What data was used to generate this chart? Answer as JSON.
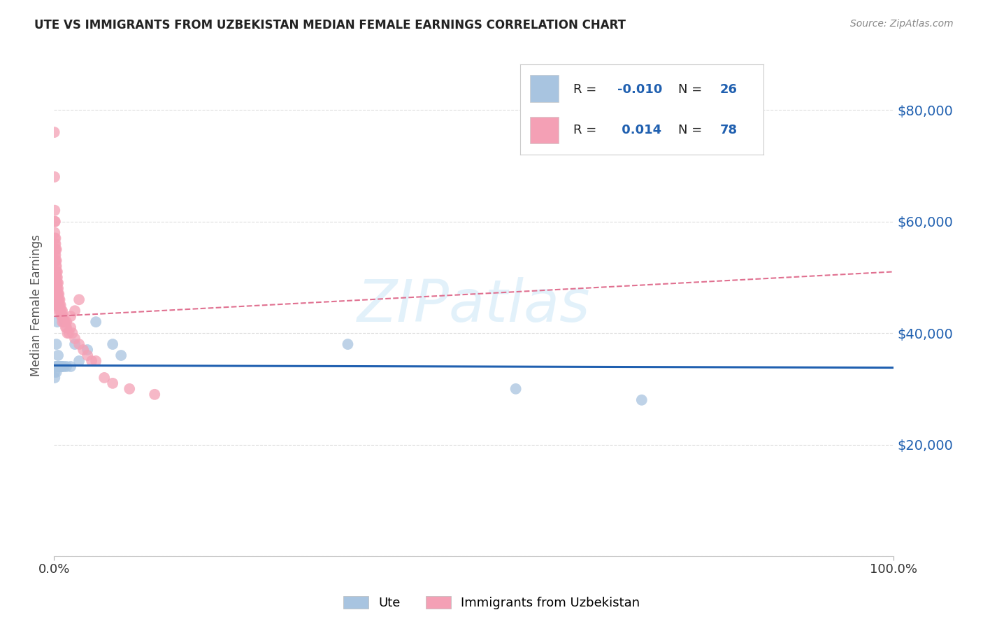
{
  "title": "UTE VS IMMIGRANTS FROM UZBEKISTAN MEDIAN FEMALE EARNINGS CORRELATION CHART",
  "source": "Source: ZipAtlas.com",
  "ylabel": "Median Female Earnings",
  "xlim": [
    0.0,
    1.0
  ],
  "ylim": [
    0,
    90000
  ],
  "yticks": [
    0,
    20000,
    40000,
    60000,
    80000
  ],
  "ytick_labels": [
    "",
    "$20,000",
    "$40,000",
    "$60,000",
    "$80,000"
  ],
  "xtick_labels": [
    "0.0%",
    "100.0%"
  ],
  "watermark": "ZIPatlas",
  "ute_color": "#a8c4e0",
  "uzbek_color": "#f4a0b5",
  "ute_line_color": "#2060b0",
  "uzbek_line_color": "#e07090",
  "background_color": "#ffffff",
  "grid_color": "#cccccc",
  "ute_scatter_x": [
    0.001,
    0.001,
    0.002,
    0.002,
    0.003,
    0.003,
    0.003,
    0.004,
    0.004,
    0.005,
    0.005,
    0.006,
    0.007,
    0.008,
    0.009,
    0.01,
    0.012,
    0.015,
    0.02,
    0.025,
    0.03,
    0.04,
    0.05,
    0.07,
    0.08,
    0.35,
    0.55,
    0.7
  ],
  "ute_scatter_y": [
    33000,
    32000,
    45000,
    34000,
    38000,
    34000,
    33000,
    42000,
    34000,
    36000,
    34000,
    34000,
    34000,
    34000,
    34000,
    34000,
    34000,
    34000,
    34000,
    38000,
    35000,
    37000,
    42000,
    38000,
    36000,
    38000,
    30000,
    28000
  ],
  "uzbek_scatter_x": [
    0.0005,
    0.0008,
    0.001,
    0.001,
    0.001,
    0.001,
    0.001,
    0.001,
    0.001,
    0.001,
    0.0015,
    0.002,
    0.002,
    0.002,
    0.002,
    0.002,
    0.002,
    0.002,
    0.002,
    0.002,
    0.002,
    0.003,
    0.003,
    0.003,
    0.003,
    0.003,
    0.003,
    0.003,
    0.003,
    0.003,
    0.003,
    0.004,
    0.004,
    0.004,
    0.004,
    0.004,
    0.005,
    0.005,
    0.005,
    0.005,
    0.005,
    0.005,
    0.006,
    0.006,
    0.006,
    0.007,
    0.007,
    0.007,
    0.008,
    0.008,
    0.009,
    0.009,
    0.01,
    0.01,
    0.01,
    0.011,
    0.012,
    0.013,
    0.014,
    0.015,
    0.016,
    0.018,
    0.02,
    0.022,
    0.025,
    0.03,
    0.035,
    0.04,
    0.045,
    0.05,
    0.06,
    0.07,
    0.09,
    0.12,
    0.015,
    0.02,
    0.025,
    0.03
  ],
  "uzbek_scatter_y": [
    76000,
    68000,
    62000,
    60000,
    58000,
    57000,
    56000,
    55000,
    54000,
    53000,
    60000,
    57000,
    56000,
    55000,
    54000,
    53000,
    52000,
    51000,
    50000,
    49000,
    48000,
    55000,
    53000,
    52000,
    51000,
    50000,
    49000,
    48000,
    47000,
    46000,
    45000,
    51000,
    50000,
    49000,
    48000,
    47000,
    49000,
    48000,
    47000,
    46000,
    45000,
    44000,
    47000,
    46000,
    45000,
    46000,
    45000,
    44000,
    45000,
    44000,
    44000,
    43000,
    44000,
    43000,
    42000,
    43000,
    42000,
    42000,
    41000,
    41000,
    40000,
    40000,
    41000,
    40000,
    39000,
    38000,
    37000,
    36000,
    35000,
    35000,
    32000,
    31000,
    30000,
    29000,
    42000,
    43000,
    44000,
    46000
  ],
  "ute_line_y0": 34200,
  "ute_line_y1": 33800,
  "uzbek_line_y0": 43000,
  "uzbek_line_y1": 51000
}
